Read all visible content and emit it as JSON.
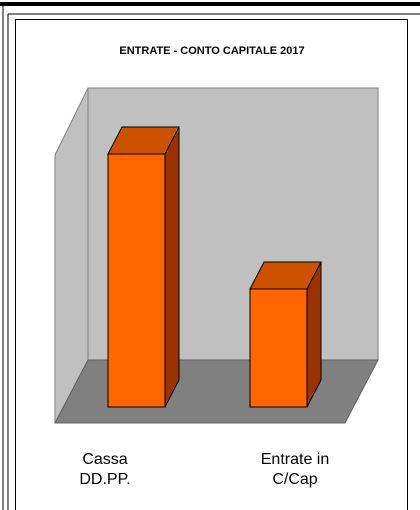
{
  "chart_data": {
    "type": "bar3d",
    "title": "ENTRATE - CONTO CAPITALE 2017",
    "categories": [
      "Cassa DD.PP.",
      "Entrate in C/Cap"
    ],
    "values": [
      253,
      118
    ],
    "color": "#ff6600"
  }
}
